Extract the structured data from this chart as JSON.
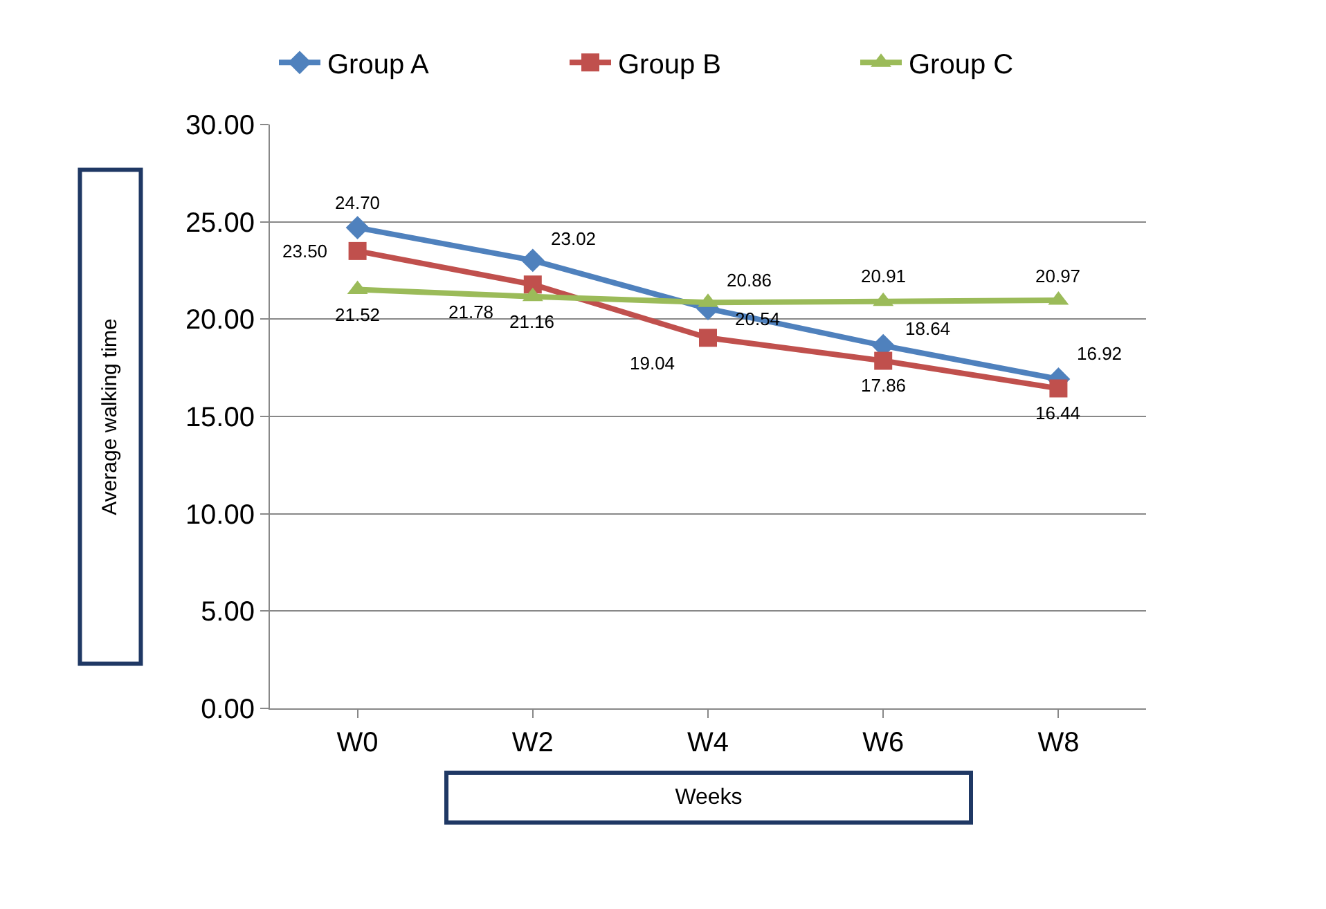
{
  "chart_data": {
    "type": "line",
    "xlabel": "Weeks",
    "ylabel": "Average walking time",
    "categories": [
      "W0",
      "W2",
      "W4",
      "W6",
      "W8"
    ],
    "series": [
      {
        "name": "Group A",
        "color": "#4f81bd",
        "marker": "diamond",
        "values": [
          24.7,
          23.02,
          20.54,
          18.64,
          16.92
        ],
        "value_labels": [
          "24.70",
          "23.02",
          "20.54",
          "18.64",
          "16.92"
        ]
      },
      {
        "name": "Group B",
        "color": "#c0504d",
        "marker": "square",
        "values": [
          23.5,
          21.78,
          19.04,
          17.86,
          16.44
        ],
        "value_labels": [
          "23.50",
          "21.78",
          "19.04",
          "17.86",
          "16.44"
        ]
      },
      {
        "name": "Group C",
        "color": "#9bbb59",
        "marker": "triangle",
        "values": [
          21.52,
          21.16,
          20.86,
          20.91,
          20.97
        ],
        "value_labels": [
          "21.52",
          "21.16",
          "20.86",
          "20.91",
          "20.97"
        ]
      }
    ],
    "ylim": [
      0,
      30
    ],
    "yticks": [
      {
        "value": 0,
        "label": "0.00"
      },
      {
        "value": 5,
        "label": "5.00"
      },
      {
        "value": 10,
        "label": "10.00"
      },
      {
        "value": 15,
        "label": "15.00"
      },
      {
        "value": 20,
        "label": "20.00"
      },
      {
        "value": 25,
        "label": "25.00"
      },
      {
        "value": 30,
        "label": "30.00"
      }
    ],
    "grid": "y",
    "legend": "top",
    "data_labels": true,
    "line_style": "solid"
  }
}
